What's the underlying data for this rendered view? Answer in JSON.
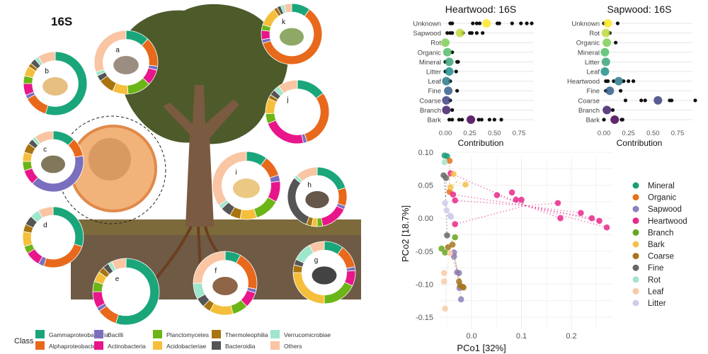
{
  "figure_label": "16S",
  "legend": {
    "title": "Class",
    "classes": [
      {
        "name": "Gammaproteobacteria",
        "color": "#1aa67a"
      },
      {
        "name": "Alphaproteobacteria",
        "color": "#e8691b"
      },
      {
        "name": "Bacilli",
        "color": "#7a6fbf"
      },
      {
        "name": "Actinobacteria",
        "color": "#e8168a"
      },
      {
        "name": "Planctomycetes",
        "color": "#6bb516"
      },
      {
        "name": "Acidobacteriae",
        "color": "#f5bf3c"
      },
      {
        "name": "Thermoleophilia",
        "color": "#a8740f"
      },
      {
        "name": "Bacteroidia",
        "color": "#555555"
      },
      {
        "name": "Verrucomicrobiae",
        "color": "#9ee6cc"
      },
      {
        "name": "Others",
        "color": "#f9c5a3"
      }
    ]
  },
  "donuts": [
    {
      "label": "a",
      "subject": "bark",
      "fractions": [
        0.12,
        0.15,
        0.02,
        0.08,
        0.12,
        0.08,
        0.08,
        0.03,
        0.02,
        0.3
      ]
    },
    {
      "label": "b",
      "subject": "sapwood",
      "fractions": [
        0.55,
        0.12,
        0.02,
        0.06,
        0.04,
        0.05,
        0.02,
        0.03,
        0.02,
        0.09
      ]
    },
    {
      "label": "c",
      "subject": "coarse root",
      "fractions": [
        0.12,
        0.1,
        0.4,
        0.08,
        0.05,
        0.05,
        0.05,
        0.03,
        0.02,
        0.1
      ]
    },
    {
      "label": "d",
      "subject": "fine root",
      "fractions": [
        0.3,
        0.25,
        0.03,
        0.08,
        0.04,
        0.08,
        0.04,
        0.05,
        0.05,
        0.08
      ]
    },
    {
      "label": "e",
      "subject": "litter",
      "fractions": [
        0.55,
        0.1,
        0.02,
        0.08,
        0.05,
        0.05,
        0.03,
        0.03,
        0.02,
        0.07
      ]
    },
    {
      "label": "f",
      "subject": "organic soil",
      "fractions": [
        0.08,
        0.2,
        0.02,
        0.08,
        0.08,
        0.12,
        0.04,
        0.05,
        0.08,
        0.25
      ]
    },
    {
      "label": "g",
      "subject": "mineral soil",
      "fractions": [
        0.1,
        0.12,
        0.02,
        0.08,
        0.18,
        0.25,
        0.04,
        0.03,
        0.1,
        0.08
      ]
    },
    {
      "label": "h",
      "subject": "leaf",
      "fractions": [
        0.2,
        0.1,
        0.02,
        0.15,
        0.03,
        0.03,
        0.03,
        0.3,
        0.02,
        0.12
      ]
    },
    {
      "label": "i",
      "subject": "heartwood",
      "fractions": [
        0.1,
        0.1,
        0.03,
        0.1,
        0.12,
        0.08,
        0.05,
        0.05,
        0.02,
        0.35
      ]
    },
    {
      "label": "j",
      "subject": "branch",
      "fractions": [
        0.15,
        0.3,
        0.02,
        0.22,
        0.05,
        0.08,
        0.02,
        0.03,
        0.03,
        0.1
      ]
    },
    {
      "label": "k",
      "subject": "leaf",
      "fractions": [
        0.1,
        0.6,
        0.02,
        0.05,
        0.03,
        0.1,
        0.02,
        0.02,
        0.02,
        0.04
      ]
    }
  ],
  "chart_data": [
    {
      "type": "scatter",
      "title": "Heartwood: 16S",
      "xlabel": "Contribution",
      "xlim": [
        0,
        0.9
      ],
      "xticks": [
        "0.00",
        "0.25",
        "0.50",
        "0.75"
      ],
      "categories": [
        "Unknown",
        "Sapwood",
        "Rot",
        "Organic",
        "Mineral",
        "Litter",
        "Leaf",
        "Fine",
        "Coarse",
        "Branch",
        "Bark"
      ],
      "means": [
        0.42,
        0.15,
        0.0,
        0.02,
        0.04,
        0.04,
        0.01,
        0.03,
        0.01,
        0.01,
        0.26
      ],
      "points": [
        [
          0.05,
          0.07,
          0.28,
          0.32,
          0.35,
          0.53,
          0.55,
          0.68,
          0.77,
          0.83,
          0.88
        ],
        [
          0.02,
          0.05,
          0.07,
          0.18,
          0.25,
          0.27,
          0.32,
          0.38
        ],
        [],
        [
          0.07
        ],
        [
          0.0,
          0.12,
          0.13
        ],
        [
          0.0,
          0.11
        ],
        [
          0.05
        ],
        [
          0.12
        ],
        [
          0.05
        ],
        [
          0.07
        ],
        [
          0.04,
          0.07,
          0.14,
          0.17,
          0.34,
          0.37,
          0.45,
          0.5,
          0.57
        ]
      ]
    },
    {
      "type": "scatter",
      "title": "Sapwood: 16S",
      "xlabel": "Contribution",
      "xlim": [
        0,
        0.9
      ],
      "xticks": [
        "0.00",
        "0.25",
        "0.50",
        "0.75"
      ],
      "categories": [
        "Unknown",
        "Rot",
        "Organic",
        "Mineral",
        "Litter",
        "Leaf",
        "Heartwood",
        "Fine",
        "Coarse",
        "Branch",
        "Bark"
      ],
      "means": [
        0.04,
        0.02,
        0.03,
        0.01,
        0.02,
        0.01,
        0.15,
        0.06,
        0.55,
        0.03,
        0.11
      ],
      "points": [
        [
          0.0,
          0.14
        ],
        [
          0.06
        ],
        [
          0.12
        ],
        [],
        [],
        [],
        [
          0.02,
          0.04,
          0.1,
          0.2,
          0.25,
          0.3
        ],
        [
          0.02,
          0.17
        ],
        [
          0.22,
          0.38,
          0.42,
          0.67,
          0.69,
          0.93
        ],
        [
          0.09
        ],
        [
          0.0,
          0.18,
          0.19
        ]
      ]
    },
    {
      "type": "scatter",
      "title": "",
      "xlabel": "PCo1 [32%]",
      "ylabel": "PCo2 [18.7%]",
      "xlim": [
        -0.06,
        0.28
      ],
      "ylim": [
        -0.155,
        0.105
      ],
      "xticks": [
        "0.0",
        "0.1",
        "0.2"
      ],
      "yticks": [
        "0.10",
        "0.05",
        "0.00",
        "-0.05",
        "-0.10",
        "-0.15"
      ],
      "grid": true,
      "legend_position": "right",
      "series": [
        {
          "name": "Mineral",
          "color": "#1b9e77",
          "points": [
            [
              -0.054,
              0.095
            ],
            [
              -0.049,
              0.094
            ]
          ]
        },
        {
          "name": "Organic",
          "color": "#e6701b",
          "points": [
            [
              -0.044,
              0.087
            ],
            [
              -0.044,
              0.04
            ]
          ]
        },
        {
          "name": "Sapwood",
          "color": "#8c80bd",
          "points": [
            [
              -0.035,
              -0.052
            ],
            [
              -0.035,
              -0.058
            ],
            [
              -0.029,
              -0.082
            ],
            [
              -0.025,
              -0.083
            ],
            [
              -0.024,
              -0.106
            ],
            [
              -0.021,
              -0.123
            ]
          ]
        },
        {
          "name": "Heartwood",
          "color": "#e7298a",
          "points": [
            [
              -0.042,
              0.068
            ],
            [
              -0.037,
              0.036
            ],
            [
              -0.033,
              0.027
            ],
            [
              -0.033,
              -0.009
            ],
            [
              0.051,
              0.035
            ],
            [
              0.081,
              0.039
            ],
            [
              0.089,
              0.028
            ],
            [
              0.1,
              0.028
            ],
            [
              0.173,
              0.023
            ],
            [
              0.178,
              0.0
            ],
            [
              0.219,
              0.008
            ],
            [
              0.241,
              0.0
            ],
            [
              0.256,
              -0.004
            ],
            [
              0.271,
              -0.014
            ]
          ]
        },
        {
          "name": "Branch",
          "color": "#66a61e",
          "points": [
            [
              -0.033,
              -0.029
            ],
            [
              -0.06,
              -0.046
            ],
            [
              -0.053,
              -0.052
            ]
          ]
        },
        {
          "name": "Bark",
          "color": "#f5c04a",
          "points": [
            [
              -0.036,
              0.067
            ],
            [
              -0.042,
              0.047
            ],
            [
              -0.012,
              0.051
            ]
          ]
        },
        {
          "name": "Coarse",
          "color": "#a6761d",
          "points": [
            [
              -0.047,
              -0.044
            ],
            [
              -0.038,
              -0.04
            ],
            [
              -0.025,
              -0.096
            ],
            [
              -0.023,
              -0.102
            ],
            [
              -0.018,
              -0.104
            ],
            [
              -0.016,
              -0.105
            ]
          ]
        },
        {
          "name": "Fine",
          "color": "#666666",
          "points": [
            [
              -0.056,
              0.065
            ],
            [
              -0.051,
              0.061
            ],
            [
              -0.049,
              -0.026
            ]
          ]
        },
        {
          "name": "Rot",
          "color": "#a5e3cf",
          "points": [
            [
              -0.054,
              0.085
            ]
          ]
        },
        {
          "name": "Leaf",
          "color": "#f8cba7",
          "points": [
            [
              -0.043,
              -0.053
            ],
            [
              -0.055,
              -0.083
            ],
            [
              -0.055,
              -0.096
            ],
            [
              -0.053,
              -0.137
            ]
          ]
        },
        {
          "name": "Litter",
          "color": "#cfcbeb",
          "points": [
            [
              -0.053,
              0.023
            ],
            [
              -0.05,
              0.012
            ],
            [
              -0.043,
              0.004
            ],
            [
              -0.041,
              0.002
            ]
          ]
        }
      ]
    }
  ]
}
